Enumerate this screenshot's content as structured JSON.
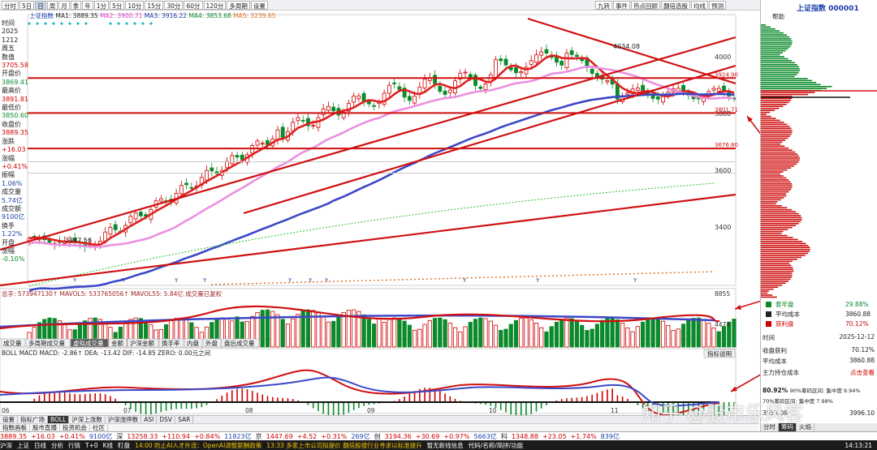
{
  "toolbar": {
    "left": [
      "分时",
      "5日",
      "日",
      "周",
      "月",
      "季",
      "年",
      "1分",
      "5分",
      "10分",
      "15分",
      "30分",
      "60分",
      "120分",
      "多周期",
      "设置"
    ],
    "selected_index": 2,
    "right": [
      "九转",
      "事件",
      "热点回顾",
      "翻倍选股",
      "均线",
      "预测"
    ]
  },
  "left_info": {
    "rows": [
      {
        "label": "时间",
        "value": "",
        "cls": "lab"
      },
      {
        "label": "2025",
        "value": "",
        "cls": "lab"
      },
      {
        "label": "1212",
        "value": "",
        "cls": "lab"
      },
      {
        "label": "周五",
        "value": "",
        "cls": "lab"
      },
      {
        "label": "数值",
        "value": "",
        "cls": "lab"
      },
      {
        "label": "3705.58",
        "value": "",
        "cls": "up"
      },
      {
        "label": "开盘价",
        "value": "",
        "cls": "lab"
      },
      {
        "label": "3869.41",
        "value": "",
        "cls": "dn"
      },
      {
        "label": "最高价",
        "value": "",
        "cls": "lab"
      },
      {
        "label": "3891.81",
        "value": "",
        "cls": "up"
      },
      {
        "label": "最低价",
        "value": "",
        "cls": "lab"
      },
      {
        "label": "3850.60",
        "value": "",
        "cls": "dn"
      },
      {
        "label": "收盘价",
        "value": "",
        "cls": "lab"
      },
      {
        "label": "3889.35",
        "value": "",
        "cls": "up"
      },
      {
        "label": "涨跌",
        "value": "",
        "cls": "lab"
      },
      {
        "label": "+16.03",
        "value": "",
        "cls": "up"
      },
      {
        "label": "涨幅",
        "value": "",
        "cls": "lab"
      },
      {
        "label": "+0.41%",
        "value": "",
        "cls": "up"
      },
      {
        "label": "振幅",
        "value": "",
        "cls": "lab"
      },
      {
        "label": "1.06%",
        "value": "",
        "cls": "blu"
      },
      {
        "label": "成交量",
        "value": "",
        "cls": "lab"
      },
      {
        "label": "5.74亿",
        "value": "",
        "cls": "blu"
      },
      {
        "label": "成交额",
        "value": "",
        "cls": "lab"
      },
      {
        "label": "9100亿",
        "value": "",
        "cls": "blu"
      },
      {
        "label": "换手",
        "value": "",
        "cls": "lab"
      },
      {
        "label": "1.22%",
        "value": "",
        "cls": "blu"
      },
      {
        "label": "开盘",
        "value": "",
        "cls": "lab"
      },
      {
        "label": "涨幅",
        "value": "",
        "cls": "lab"
      },
      {
        "label": "-0.10%",
        "value": "",
        "cls": "dn"
      }
    ]
  },
  "ma_legend": {
    "name": "上证指数",
    "items": [
      {
        "text": "MA1: 3889.35",
        "color": "#222"
      },
      {
        "text": "MA2: 3900.71",
        "color": "#e040c8"
      },
      {
        "text": "MA3: 3916.22",
        "color": "#1a3ea8"
      },
      {
        "text": "MA4: 3853.68",
        "color": "#0a8a2a"
      },
      {
        "text": "MA5: 3239.65",
        "color": "#e07020"
      }
    ]
  },
  "price_labels": {
    "peak": "4034.08",
    "low": "3347.56",
    "lines": [
      "3924.90",
      "3801.71",
      "3676.80"
    ],
    "axis": [
      "4000",
      "3800",
      "3600",
      "3400"
    ]
  },
  "volume_legend": {
    "text": "总手: 573947130↑ MAVOL5: 533765056↑ MAVOL55: 5.84亿  成交量已复权"
  },
  "volume_axis": [
    "8855",
    "4474"
  ],
  "volume_tabs": [
    "成交量",
    "多周期成交量",
    "虚拟成交量",
    "金额",
    "沪深金额",
    "换手率",
    "内盘",
    "外盘",
    "盘后成交量"
  ],
  "macd_legend": {
    "text": "BOLL  MACD  MACD: -2.86↑  DEA: -13.42  DIF: -14.85  ZERO: 0.00元之间"
  },
  "macd_button": "指标说明",
  "months": [
    "06",
    "07",
    "08",
    "09",
    "10",
    "11"
  ],
  "bottom_tabs": [
    "设置",
    "指标广场",
    "BOLL",
    "沪深上涨数",
    "沪深涨停数",
    "ASI",
    "DSV",
    "SAR"
  ],
  "bottom_tabs2": [
    "指数画板",
    "股市直播",
    "投资机会",
    "社区"
  ],
  "right_panel": {
    "title": "上证指数 000001",
    "help": "帮助",
    "legend": [
      {
        "label": "套牢盘",
        "value": "29.88%",
        "color": "#0a8a2a"
      },
      {
        "label": "平均成本",
        "value": "3860.88",
        "color": "#222"
      },
      {
        "label": "获利盘",
        "value": "70.12%",
        "color": "#d00000"
      }
    ],
    "time_label": "时间",
    "time_value": "2025-12-12",
    "profit_label": "收盘获利",
    "profit_value": "70.12%",
    "avg_label": "平均成本",
    "avg_value": "3860.88",
    "main_label": "主力持仓成本",
    "main_value": "点击查看",
    "conc1": "80.92%",
    "conc1_desc": "90%筹码区间: 集中度 9.94%",
    "conc2": "70%筹码区间: 集中度 7.98%",
    "range_left": "3555.08",
    "range_right": "3996.10",
    "tabs": [
      "分时",
      "筹码",
      "火焰"
    ]
  },
  "ticker": [
    {
      "t": "3889.35",
      "c": "red"
    },
    {
      "t": "+16.03",
      "c": "red"
    },
    {
      "t": "+0.41%",
      "c": "red"
    },
    {
      "t": "9100亿",
      "c": "blue"
    },
    {
      "t": "深",
      "c": ""
    },
    {
      "t": "13258.33",
      "c": "red"
    },
    {
      "t": "+110.94",
      "c": "red"
    },
    {
      "t": "+0.84%",
      "c": "red"
    },
    {
      "t": "11823亿",
      "c": "blue"
    },
    {
      "t": "京",
      "c": ""
    },
    {
      "t": "1447.69",
      "c": "red"
    },
    {
      "t": "+4.52",
      "c": "red"
    },
    {
      "t": "+0.31%",
      "c": "red"
    },
    {
      "t": "269亿",
      "c": "blue"
    },
    {
      "t": "创",
      "c": ""
    },
    {
      "t": "3194.36",
      "c": "red"
    },
    {
      "t": "+30.69",
      "c": "red"
    },
    {
      "t": "+0.97%",
      "c": "red"
    },
    {
      "t": "5663亿",
      "c": "blue"
    },
    {
      "t": "科",
      "c": ""
    },
    {
      "t": "1348.88",
      "c": "red"
    },
    {
      "t": "+23.05",
      "c": "red"
    },
    {
      "t": "+1.74%",
      "c": "red"
    },
    {
      "t": "839亿",
      "c": "blue"
    }
  ],
  "status": {
    "items": [
      "沪深",
      "上证",
      "日线",
      "分析",
      "行情",
      "T+0",
      "K线",
      "盯盘",
      "14:00 防止AI人才外流：OpenAI调整薪酬政策",
      "13:33 多家上市公司拟提价 翻倍股搜行业寻求以标准提升",
      "暂无新线信息",
      "代码/名称/简拼/功能"
    ],
    "time": "14:13:21"
  },
  "watermark": "知乎 @股市乐风客"
}
